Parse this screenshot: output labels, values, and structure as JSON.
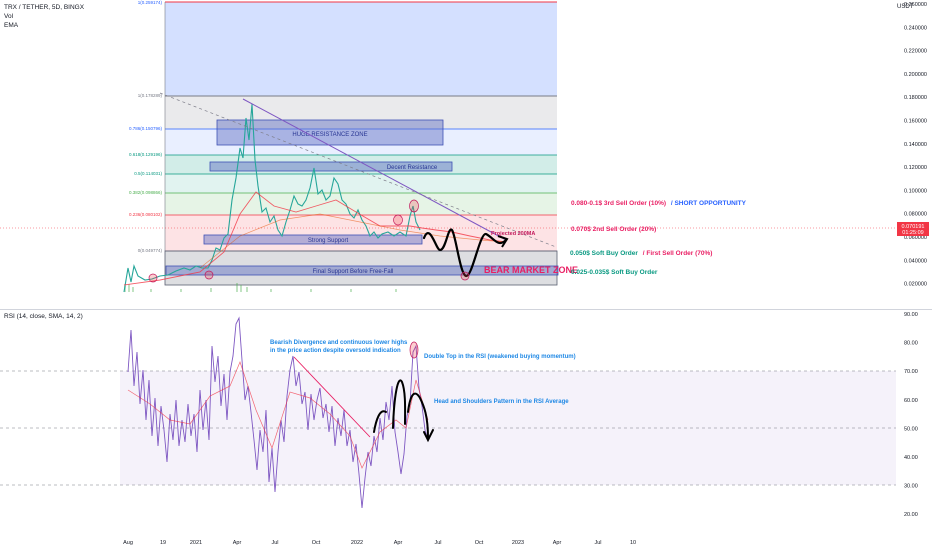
{
  "header": {
    "symbol_line": "TRX / TETHER, 5D, BINGX",
    "indicator_vol": "Vol",
    "indicator_ema": "EMA",
    "unit": "USDT"
  },
  "price_axis": {
    "ticks": [
      "0.260000",
      "0.240000",
      "0.220000",
      "0.200000",
      "0.180000",
      "0.160000",
      "0.140000",
      "0.120000",
      "0.100000",
      "0.080000",
      "0.060000",
      "0.040000",
      "0.020000"
    ],
    "current_price": "0.070191",
    "countdown": "01:25:09",
    "current_color": "#f23645"
  },
  "fib_levels": [
    {
      "label": "1(0.259174)",
      "color": "#2962ff"
    },
    {
      "label": "1(0.178289)",
      "color": "#787b86"
    },
    {
      "label": "0.786(0.150796)",
      "color": "#2962ff"
    },
    {
      "label": "0.618(0.129196)",
      "color": "#089981"
    },
    {
      "label": "0.5(0.114031)",
      "color": "#089981"
    },
    {
      "label": "0.382(0.098866)",
      "color": "#4caf50"
    },
    {
      "label": "0.236(0.080102)",
      "color": "#f23645"
    },
    {
      "label": "0(0.049774)",
      "color": "#787b86"
    }
  ],
  "zones": {
    "huge_resistance": "HUGE RESISTANCE ZONE",
    "decent_resistance": "Decent Resistance",
    "strong_support": "Strong Support",
    "final_support": "Final Support Before Free-Fall",
    "projected_ma": "Projected 200MA",
    "bear_market": "BEAR MARKET ZONE"
  },
  "orders": {
    "third_sell": "0.080-0.1$ 3rd Sell Order (10%)",
    "short_opportunity": "/ SHORT OPPORTUNITY",
    "second_sell": "0.070$ 2nd Sell Order (20%)",
    "soft_buy_050": "0.050$ Soft Buy Order",
    "first_sell": "/ First Sell Order (70%)",
    "soft_buy_025": "0.025-0.035$ Soft Buy Order"
  },
  "rsi": {
    "title": "RSI (14, close, SMA, 14, 2)",
    "ticks": [
      "90.00",
      "80.00",
      "70.00",
      "60.00",
      "50.00",
      "40.00",
      "30.00",
      "20.00"
    ],
    "annotations": {
      "bearish_divergence_1": "Bearish Divergence and continuous lower highs",
      "bearish_divergence_2": "in the price action despite oversold indication",
      "double_top": "Double Top in the RSI (weakened buying momentum)",
      "head_shoulders": "Head and Shoulders Pattern in the RSI Average"
    }
  },
  "time_axis": [
    "Aug",
    "19",
    "2021",
    "Apr",
    "Jul",
    "Oct",
    "2022",
    "Apr",
    "Jul",
    "Oct",
    "2023",
    "Apr",
    "Jul",
    "10"
  ],
  "chart_data": [
    {
      "type": "line",
      "series": [
        {
          "x": [
            "2020-08",
            "2020-10",
            "2020-12",
            "2021-01",
            "2021-02",
            "2021-03",
            "2021-04",
            "2021-05",
            "2021-06",
            "2021-07",
            "2021-08",
            "2021-09",
            "2021-10",
            "2021-11",
            "2021-12",
            "2022-01",
            "2022-02",
            "2022-03",
            "2022-04",
            "2022-05"
          ],
          "values": [
            0.027,
            0.025,
            0.027,
            0.029,
            0.045,
            0.065,
            0.15,
            0.09,
            0.07,
            0.056,
            0.085,
            0.095,
            0.1,
            0.11,
            0.08,
            0.07,
            0.062,
            0.062,
            0.065,
            0.075
          ]
        }
      ],
      "ylim": [
        0.01,
        0.26
      ],
      "grid": true
    },
    {
      "type": "line",
      "series": [
        {
          "x": [
            "2020-08",
            "2020-10",
            "2020-12",
            "2021-01",
            "2021-02",
            "2021-03",
            "2021-04",
            "2021-05",
            "2021-06",
            "2021-07",
            "2021-08",
            "2021-09",
            "2021-10",
            "2021-11",
            "2021-12",
            "2022-01",
            "2022-02",
            "2022-03",
            "2022-04",
            "2022-05"
          ],
          "values": [
            65,
            50,
            52,
            46,
            55,
            60,
            74,
            53,
            46,
            44,
            55,
            60,
            64,
            58,
            45,
            40,
            42,
            55,
            68,
            57
          ]
        }
      ],
      "ylim": [
        15,
        90
      ],
      "grid": true
    }
  ]
}
